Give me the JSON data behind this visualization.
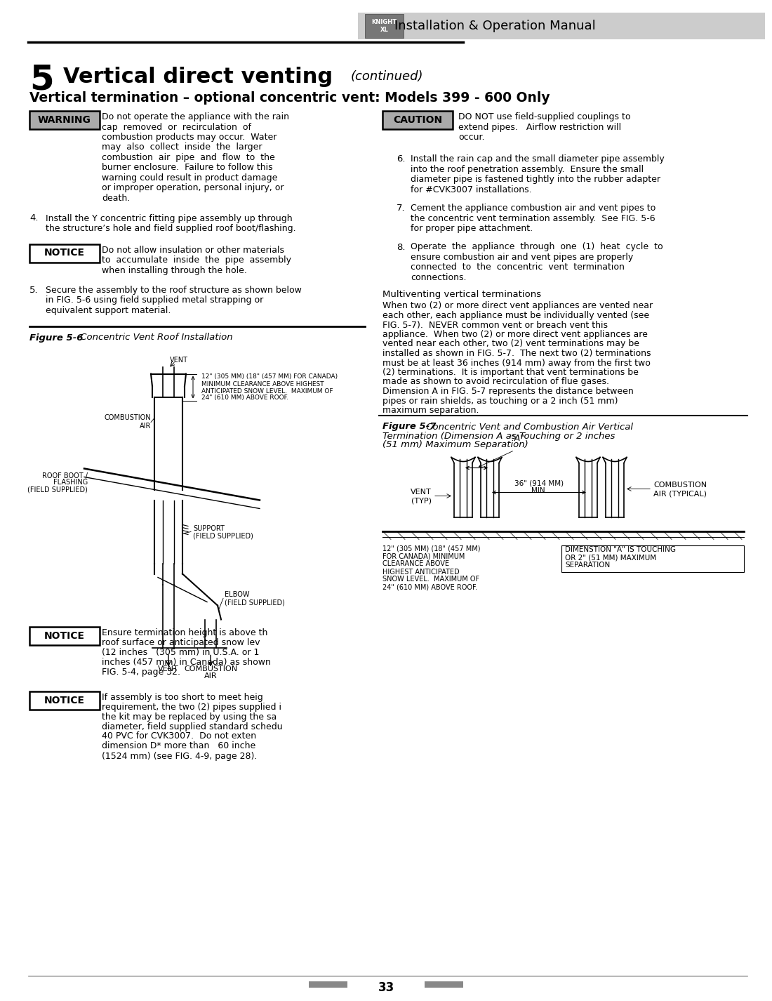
{
  "page_title_num": "5",
  "page_title_main": "Vertical direct venting",
  "page_title_cont": "(continued)",
  "section_title": "Vertical termination – optional concentric vent: Models 399 - 600 Only",
  "warning_label": "WARNING",
  "warning_text_lines": [
    "Do not operate the appliance with the rain",
    "cap  removed  or  recirculation  of",
    "combustion products may occur.  Water",
    "may  also  collect  inside  the  larger",
    "combustion  air  pipe  and  flow  to  the",
    "burner enclosure.  Failure to follow this",
    "warning could result in product damage",
    "or improper operation, personal injury, or",
    "death."
  ],
  "caution_label": "CAUTION",
  "caution_text_lines": [
    "DO NOT use field-supplied couplings to",
    "extend pipes.   Airflow restriction will",
    "occur."
  ],
  "step4_lines": [
    "Install the Y concentric fitting pipe assembly up through",
    "the structure’s hole and field supplied roof boot/flashing."
  ],
  "notice1_label": "NOTICE",
  "notice1_text_lines": [
    "Do not allow insulation or other materials",
    "to  accumulate  inside  the  pipe  assembly",
    "when installing through the hole."
  ],
  "step5_lines": [
    "Secure the assembly to the roof structure as shown below",
    "in FIG. 5-6 using field supplied metal strapping or",
    "equivalent support material."
  ],
  "fig56_bold": "Figure 5-6",
  "fig56_italic": " Concentric Vent Roof Installation",
  "step6_lines": [
    "Install the rain cap and the small diameter pipe assembly",
    "into the roof penetration assembly.  Ensure the small",
    "diameter pipe is fastened tightly into the rubber adapter",
    "for #CVK3007 installations."
  ],
  "step7_lines": [
    "Cement the appliance combustion air and vent pipes to",
    "the concentric vent termination assembly.  See FIG. 5-6",
    "for proper pipe attachment."
  ],
  "step8_lines": [
    "Operate  the  appliance  through  one  (1)  heat  cycle  to",
    "ensure combustion air and vent pipes are properly",
    "connected  to  the  concentric  vent  termination",
    "connections."
  ],
  "multiventing_title": "Multiventing vertical terminations",
  "multiventing_lines": [
    "When two (2) or more direct vent appliances are vented near",
    "each other, each appliance must be individually vented (see",
    "FIG. 5-7).  NEVER common vent or breach vent this",
    "appliance.  When two (2) or more direct vent appliances are",
    "vented near each other, two (2) vent terminations may be",
    "installed as shown in FIG. 5-7.  The next two (2) terminations",
    "must be at least 36 inches (914 mm) away from the first two",
    "(2) terminations.  It is important that vent terminations be",
    "made as shown to avoid recirculation of flue gases.",
    "Dimension A in FIG. 5-7 represents the distance between",
    "pipes or rain shields, as touching or a 2 inch (51 mm)",
    "maximum separation."
  ],
  "fig57_bold": "Figure 5-7",
  "fig57_italic_lines": [
    " Concentric Vent and Combustion Air Vertical",
    "Termination (Dimension A as Touching or 2 inches",
    "(51 mm) Maximum Separation)"
  ],
  "notice2_label": "NOTICE",
  "notice2_text_lines": [
    "Ensure termination height is above th",
    "roof surface or anticipated snow lev",
    "(12 inches   (305 mm) in U.S.A. or 1",
    "inches (457 mm) in Canada) as shown",
    "FIG. 5-4, page 32."
  ],
  "notice3_label": "NOTICE",
  "notice3_text_lines": [
    "If assembly is too short to meet heig",
    "requirement, the two (2) pipes supplied i",
    "the kit may be replaced by using the sa",
    "diameter, field supplied standard schedu",
    "40 PVC for CVK3007.  Do not exten",
    "dimension D* more than   60 inche",
    "(1524 mm) (see FIG. 4-9, page 28)."
  ],
  "fig57_note1_lines": [
    "12\" (305 MM) (18\" (457 MM)",
    "FOR CANADA) MINIMUM",
    "CLEARANCE ABOVE",
    "HIGHEST ANTICIPATED",
    "SNOW LEVEL.  MAXIMUM OF",
    "24\" (610 MM) ABOVE ROOF."
  ],
  "fig57_note2_lines": [
    "DIMENSTION \"A\" IS TOUCHING",
    "OR 2\" (51 MM) MAXIMUM",
    "SEPARATION"
  ],
  "fig56_note_lines": [
    "12\" (305 MM) (18\" (457 MM) FOR CANADA)",
    "MINIMUM CLEARANCE ABOVE HIGHEST",
    "ANTICIPATED SNOW LEVEL.  MAXIMUM OF",
    "24\" (610 MM) ABOVE ROOF."
  ],
  "header_bg": "#cccccc",
  "header_text": "Installation & Operation Manual",
  "page_num": "33",
  "bg_color": "#ffffff",
  "warning_bg": "#aaaaaa",
  "caution_bg": "#aaaaaa"
}
